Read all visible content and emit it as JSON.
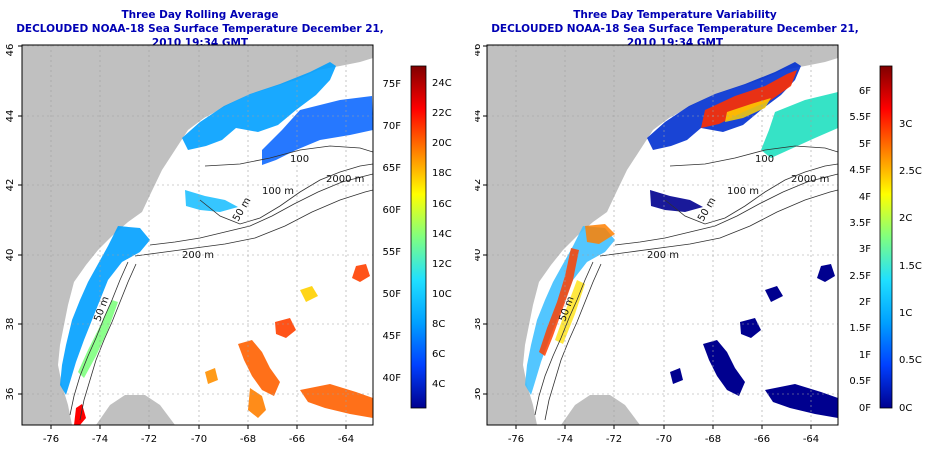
{
  "maps": [
    {
      "title_line1": "Three Day Rolling Average",
      "title_line2": "DECLOUDED NOAA-18 Sea Surface Temperature December 21, 2010 19:34 GMT",
      "lon_ticks": [
        "-76",
        "-74",
        "-72",
        "-70",
        "-68",
        "-66",
        "-64"
      ],
      "lat_ticks": [
        "36",
        "38",
        "40",
        "42",
        "44",
        "46"
      ],
      "contour_labels": [
        "100",
        "2000 m",
        "100 m",
        "50 m",
        "200 m",
        "50 m"
      ],
      "colorbar": {
        "fahrenheit_labels": [
          "75F",
          "70F",
          "65F",
          "60F",
          "55F",
          "50F",
          "45F",
          "40F"
        ],
        "celsius_labels": [
          "24C",
          "22C",
          "20C",
          "18C",
          "16C",
          "14C",
          "12C",
          "10C",
          "8C",
          "6C",
          "4C"
        ],
        "palette": [
          "#00008f",
          "#0040ff",
          "#00a0ff",
          "#20e0ff",
          "#80ff80",
          "#ffff00",
          "#ff8000",
          "#ff0000",
          "#800000"
        ]
      }
    },
    {
      "title_line1": "Three Day Temperature Variability",
      "title_line2": "DECLOUDED NOAA-18 Sea Surface Temperature December 21, 2010 19:34 GMT",
      "lon_ticks": [
        "-76",
        "-74",
        "-72",
        "-70",
        "-68",
        "-66",
        "-64"
      ],
      "lat_ticks": [
        "36",
        "38",
        "40",
        "42",
        "44",
        "46"
      ],
      "contour_labels": [
        "100",
        "2000 m",
        "100 m",
        "50 m",
        "200 m",
        "50 m"
      ],
      "colorbar": {
        "fahrenheit_labels": [
          "6F",
          "5.5F",
          "5F",
          "4.5F",
          "4F",
          "3.5F",
          "3F",
          "2.5F",
          "2F",
          "1.5F",
          "1F",
          "0.5F",
          "0F"
        ],
        "celsius_labels": [
          "3C",
          "2.5C",
          "2C",
          "1.5C",
          "1C",
          "0.5C",
          "0C"
        ],
        "palette": [
          "#00008f",
          "#0040ff",
          "#00a0ff",
          "#20e0ff",
          "#80ff80",
          "#ffff00",
          "#ff8000",
          "#ff0000",
          "#800000"
        ]
      }
    }
  ]
}
